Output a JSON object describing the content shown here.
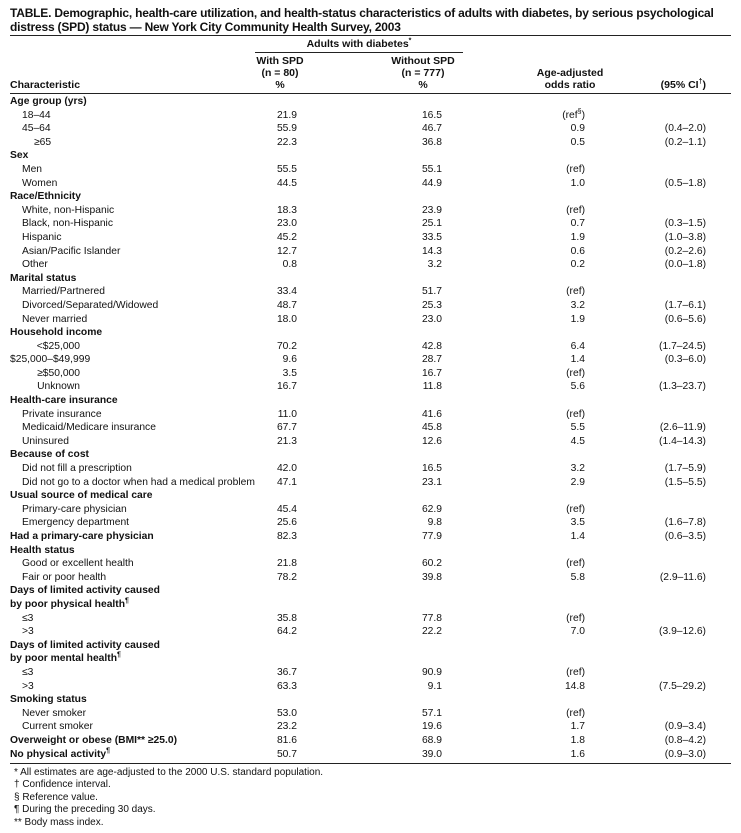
{
  "title": "TABLE. Demographic, health-care utilization, and health-status characteristics of adults with diabetes, by serious psychological distress (SPD) status — New York City Community Health Survey, 2003",
  "header": {
    "group": "Adults with diabetes",
    "group_sup": "*",
    "characteristic": "Characteristic",
    "with_spd": [
      "With SPD",
      "(n = 80)",
      "%"
    ],
    "without_spd": [
      "Without SPD",
      "(n = 777)",
      "%"
    ],
    "odds": [
      "Age-adjusted",
      "odds ratio"
    ],
    "ci": "(95% CI",
    "ci_sup": "†",
    "ci_close": ")"
  },
  "rows": [
    {
      "t": "h",
      "label": "Age group (yrs)"
    },
    {
      "t": "i",
      "label": "18–44",
      "v": [
        "21.9",
        "16.5",
        "(ref",
        "",
        ""
      ],
      "or_sup": "§"
    },
    {
      "t": "i",
      "label": "45–64",
      "v": [
        "55.9",
        "46.7",
        "0.9",
        "(0.4–2.0)"
      ]
    },
    {
      "t": "i2",
      "label": "≥65",
      "v": [
        "22.3",
        "36.8",
        "0.5",
        "(0.2–1.1)"
      ]
    },
    {
      "t": "h",
      "label": "Sex"
    },
    {
      "t": "i",
      "label": "Men",
      "v": [
        "55.5",
        "55.1",
        "(ref)",
        ""
      ]
    },
    {
      "t": "i",
      "label": "Women",
      "v": [
        "44.5",
        "44.9",
        "1.0",
        "(0.5–1.8)"
      ]
    },
    {
      "t": "h",
      "label": "Race/Ethnicity"
    },
    {
      "t": "i",
      "label": "White, non-Hispanic",
      "v": [
        "18.3",
        "23.9",
        "(ref)",
        ""
      ]
    },
    {
      "t": "i",
      "label": "Black, non-Hispanic",
      "v": [
        "23.0",
        "25.1",
        "0.7",
        "(0.3–1.5)"
      ]
    },
    {
      "t": "i",
      "label": "Hispanic",
      "v": [
        "45.2",
        "33.5",
        "1.9",
        "(1.0–3.8)"
      ]
    },
    {
      "t": "i",
      "label": "Asian/Pacific Islander",
      "v": [
        "12.7",
        "14.3",
        "0.6",
        "(0.2–2.6)"
      ]
    },
    {
      "t": "i",
      "label": "Other",
      "v": [
        "0.8",
        "3.2",
        "0.2",
        "(0.0–1.8)"
      ]
    },
    {
      "t": "h",
      "label": "Marital status"
    },
    {
      "t": "i",
      "label": "Married/Partnered",
      "v": [
        "33.4",
        "51.7",
        "(ref)",
        ""
      ]
    },
    {
      "t": "i",
      "label": "Divorced/Separated/Widowed",
      "v": [
        "48.7",
        "25.3",
        "3.2",
        "(1.7–6.1)"
      ]
    },
    {
      "t": "i",
      "label": "Never married",
      "v": [
        "18.0",
        "23.0",
        "1.9",
        "(0.6–5.6)"
      ]
    },
    {
      "t": "h",
      "label": "Household income"
    },
    {
      "t": "r",
      "label": "<$25,000",
      "v": [
        "70.2",
        "42.8",
        "6.4",
        "(1.7–24.5)"
      ]
    },
    {
      "t": "r",
      "label": "$25,000–$49,999",
      "v": [
        "9.6",
        "28.7",
        "1.4",
        "(0.3–6.0)"
      ]
    },
    {
      "t": "r",
      "label": "≥$50,000",
      "v": [
        "3.5",
        "16.7",
        "(ref)",
        ""
      ]
    },
    {
      "t": "r",
      "label": "Unknown",
      "v": [
        "16.7",
        "11.8",
        "5.6",
        "(1.3–23.7)"
      ]
    },
    {
      "t": "h",
      "label": "Health-care insurance"
    },
    {
      "t": "i",
      "label": "Private insurance",
      "v": [
        "11.0",
        "41.6",
        "(ref)",
        ""
      ]
    },
    {
      "t": "i",
      "label": "Medicaid/Medicare insurance",
      "v": [
        "67.7",
        "45.8",
        "5.5",
        "(2.6–11.9)"
      ]
    },
    {
      "t": "i",
      "label": "Uninsured",
      "v": [
        "21.3",
        "12.6",
        "4.5",
        "(1.4–14.3)"
      ]
    },
    {
      "t": "h",
      "label": "Because of cost"
    },
    {
      "t": "i",
      "label": "Did not fill a prescription",
      "v": [
        "42.0",
        "16.5",
        "3.2",
        "(1.7–5.9)"
      ]
    },
    {
      "t": "i",
      "label": "Did not go to a doctor when had a medical problem",
      "v": [
        "47.1",
        "23.1",
        "2.9",
        "(1.5–5.5)"
      ]
    },
    {
      "t": "h",
      "label": "Usual source of medical care"
    },
    {
      "t": "i",
      "label": "Primary-care physician",
      "v": [
        "45.4",
        "62.9",
        "(ref)",
        ""
      ]
    },
    {
      "t": "i",
      "label": "Emergency department",
      "v": [
        "25.6",
        "9.8",
        "3.5",
        "(1.6–7.8)"
      ]
    },
    {
      "t": "h",
      "label": "Had a primary-care physician",
      "v": [
        "82.3",
        "77.9",
        "1.4",
        "(0.6–3.5)"
      ]
    },
    {
      "t": "h",
      "label": "Health status"
    },
    {
      "t": "i",
      "label": "Good or excellent health",
      "v": [
        "21.8",
        "60.2",
        "(ref)",
        ""
      ]
    },
    {
      "t": "i",
      "label": "Fair or poor health",
      "v": [
        "78.2",
        "39.8",
        "5.8",
        "(2.9–11.6)"
      ]
    },
    {
      "t": "h",
      "label": "Days of limited activity caused"
    },
    {
      "t": "h",
      "label": " by poor physical health",
      "sup": "¶"
    },
    {
      "t": "i",
      "label": "≤3",
      "v": [
        "35.8",
        "77.8",
        "(ref)",
        ""
      ]
    },
    {
      "t": "i",
      "label": ">3",
      "v": [
        "64.2",
        "22.2",
        "7.0",
        "(3.9–12.6)"
      ]
    },
    {
      "t": "h",
      "label": "Days of limited activity caused"
    },
    {
      "t": "h",
      "label": " by poor mental health",
      "sup": "¶"
    },
    {
      "t": "i",
      "label": "≤3",
      "v": [
        "36.7",
        "90.9",
        "(ref)",
        ""
      ]
    },
    {
      "t": "i",
      "label": ">3",
      "v": [
        "63.3",
        "9.1",
        "14.8",
        "(7.5–29.2)"
      ]
    },
    {
      "t": "h",
      "label": "Smoking status"
    },
    {
      "t": "i",
      "label": "Never smoker",
      "v": [
        "53.0",
        "57.1",
        "(ref)",
        ""
      ]
    },
    {
      "t": "i",
      "label": "Current smoker",
      "v": [
        "23.2",
        "19.6",
        "1.7",
        "(0.9–3.4)"
      ]
    },
    {
      "t": "h",
      "label": "Overweight or obese (BMI** ≥25.0)",
      "v": [
        "81.6",
        "68.9",
        "1.8",
        "(0.8–4.2)"
      ]
    },
    {
      "t": "h",
      "label": "No physical activity",
      "sup": "¶",
      "v": [
        "50.7",
        "39.0",
        "1.6",
        "(0.9–3.0)"
      ]
    }
  ],
  "footnotes": [
    "* All estimates are age-adjusted to the 2000 U.S. standard population.",
    "† Confidence interval.",
    "§ Reference value.",
    "¶ During the preceding 30 days.",
    "** Body mass index."
  ]
}
